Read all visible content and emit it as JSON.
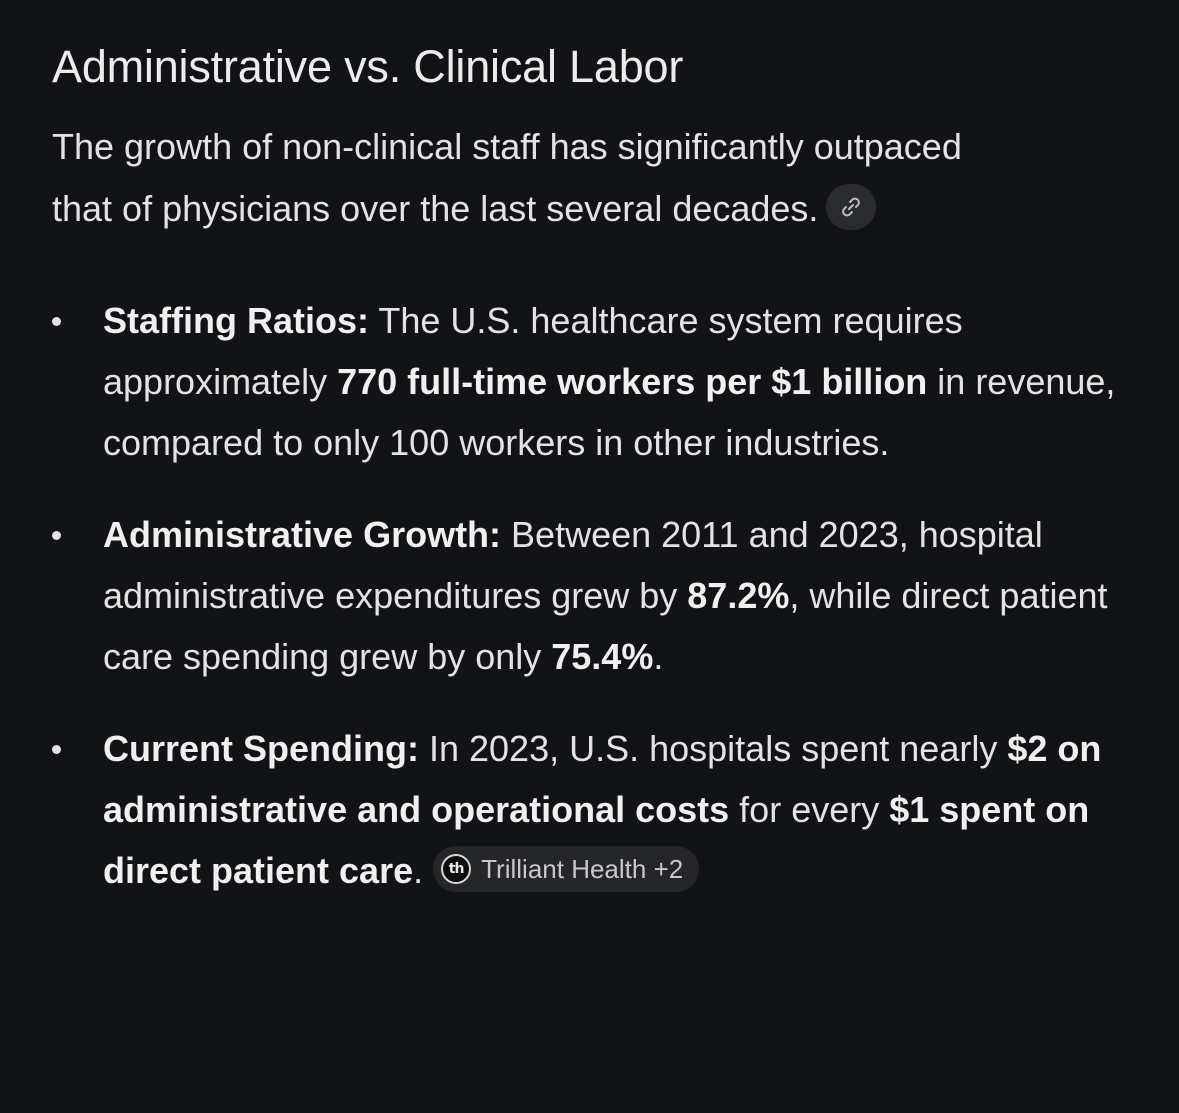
{
  "title": "Administrative vs. Clinical Labor",
  "intro": "The growth of non-clinical staff has significantly outpaced that of physicians over the last several decades.",
  "link_icon": "link-icon",
  "bullets": [
    {
      "label": "Staffing Ratios:",
      "t1": " The U.S. healthcare system requires approximately ",
      "b1": "770 full-time workers per $1 billion",
      "t2": " in revenue, compared to only 100 workers in other industries."
    },
    {
      "label": "Administrative Growth:",
      "t1": " Between 2011 and 2023, hospital administrative expenditures grew by ",
      "b1": "87.2%",
      "t2": ", while direct patient care spending grew by only ",
      "b2": "75.4%",
      "t3": "."
    },
    {
      "label": "Current Spending:",
      "t1": " In 2023, U.S. hospitals spent nearly ",
      "b1": "$2 on administrative and operational costs",
      "t2": " for every ",
      "b2": "$1 spent on direct patient care",
      "t3": "."
    }
  ],
  "source": {
    "logo_text": "th",
    "label": "Trilliant Health +2"
  }
}
